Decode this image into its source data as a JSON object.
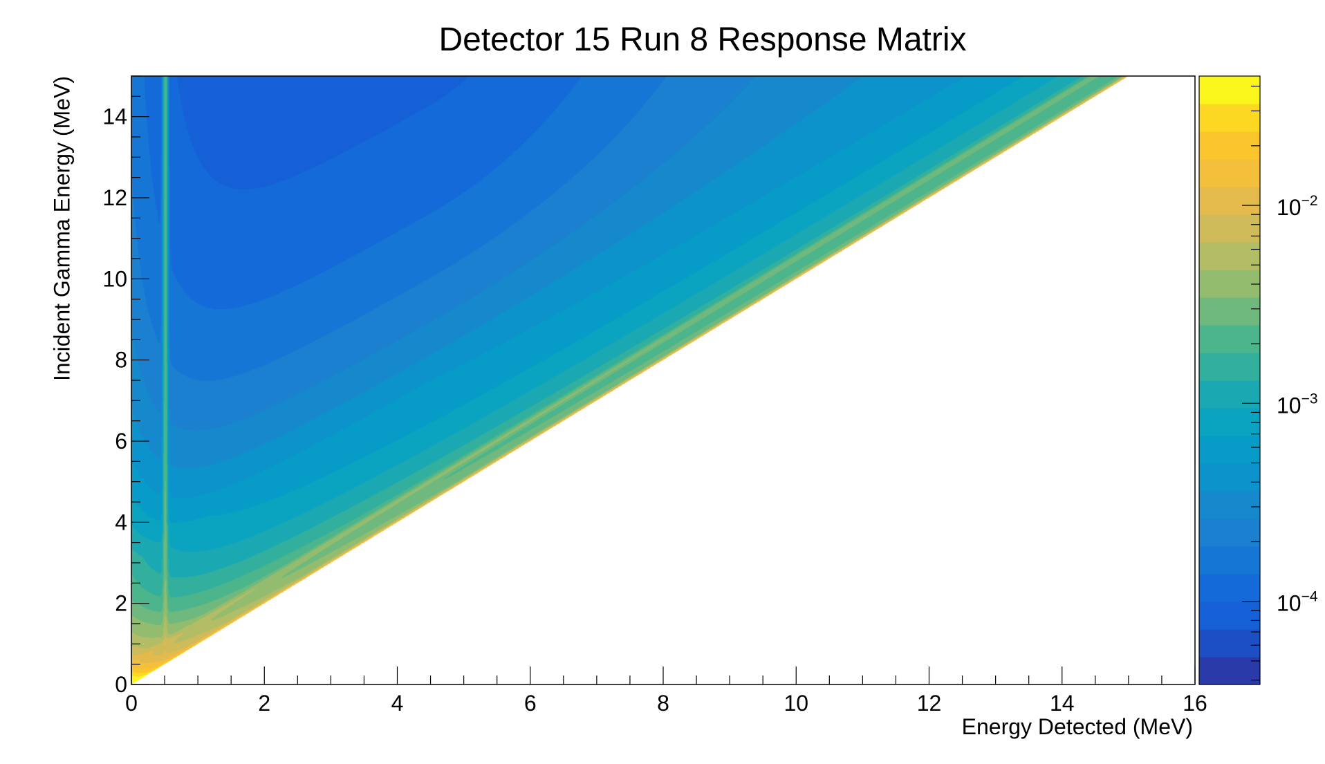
{
  "chart_data": {
    "type": "heatmap",
    "title": "Detector 15 Run 8 Response Matrix",
    "xlabel": "Energy Detected (MeV)",
    "ylabel": "Incident Gamma Energy (MeV)",
    "xlim": [
      0,
      16
    ],
    "ylim": [
      0,
      15
    ],
    "x_ticks": [
      0,
      2,
      4,
      6,
      8,
      10,
      12,
      14,
      16
    ],
    "y_ticks": [
      0,
      2,
      4,
      6,
      8,
      10,
      12,
      14
    ],
    "x_tick_labels": [
      "0",
      "2",
      "4",
      "6",
      "8",
      "10",
      "12",
      "14",
      "16"
    ],
    "y_tick_labels": [
      "0",
      "2",
      "4",
      "6",
      "8",
      "10",
      "12",
      "14"
    ],
    "colorbar": {
      "scale": "log",
      "range": [
        3.8e-05,
        0.045
      ],
      "ticks": [
        0.0001,
        0.001,
        0.01
      ],
      "tick_labels": [
        {
          "base": "10",
          "exp": "−4"
        },
        {
          "base": "10",
          "exp": "−3"
        },
        {
          "base": "10",
          "exp": "−2"
        }
      ],
      "palette": [
        "#2a3aa8",
        "#1d4fc4",
        "#1560d6",
        "#146ad8",
        "#1676d5",
        "#1a80cf",
        "#1689cc",
        "#0d93cb",
        "#079cc8",
        "#0aa3c0",
        "#1aa9b3",
        "#32b09d",
        "#4db58b",
        "#6fb97e",
        "#93bc6e",
        "#b2bd66",
        "#d0bb5a",
        "#e5ba4d",
        "#f4c03c",
        "#fac52d",
        "#fcd822",
        "#faf51a"
      ]
    },
    "features": {
      "full_energy_peak": {
        "relation": "y = x",
        "approx_value": 0.01
      },
      "escape_peak": {
        "relation": "y = x + 0.511",
        "approx_value": 0.0025
      },
      "annihilation_line": {
        "x": 0.511,
        "approx_value": 0.003
      },
      "compton_valley": {
        "x_range": [
          2.5,
          8
        ],
        "y_range": [
          10.7,
          15
        ],
        "approx_value": 9e-05
      },
      "empty_region": "x > y"
    }
  }
}
